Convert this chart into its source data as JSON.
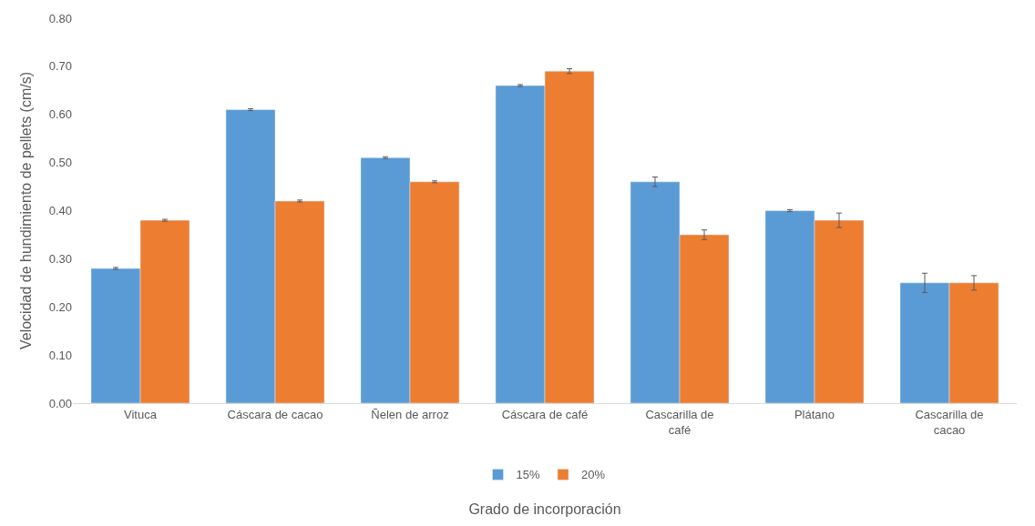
{
  "chart_data": {
    "type": "bar",
    "xlabel": "Grado de incorporación",
    "ylabel": "Velocidad de hundimiento de pellets (cm/s)",
    "categories": [
      "Vituca",
      "Cáscara de cacao",
      "Ñelen de arroz",
      "Cáscara de café",
      "Cascarilla de café",
      "Plátano",
      "Cascarilla de cacao"
    ],
    "series": [
      {
        "name": "15%",
        "color": "#5b9bd5",
        "values": [
          0.28,
          0.61,
          0.51,
          0.66,
          0.46,
          0.4,
          0.25
        ],
        "errors": [
          0.002,
          0.002,
          0.002,
          0.002,
          0.01,
          0.002,
          0.02
        ]
      },
      {
        "name": "20%",
        "color": "#ed7d31",
        "values": [
          0.38,
          0.42,
          0.46,
          0.69,
          0.35,
          0.38,
          0.25
        ],
        "errors": [
          0.002,
          0.002,
          0.002,
          0.005,
          0.01,
          0.015,
          0.015
        ]
      }
    ],
    "ylim": [
      0,
      0.8
    ],
    "yticks": [
      {
        "value": 0,
        "label": "0.00"
      },
      {
        "value": 0.1,
        "label": "0.10"
      },
      {
        "value": 0.2,
        "label": "0.20"
      },
      {
        "value": 0.3,
        "label": "0.30"
      },
      {
        "value": 0.4,
        "label": "0.40"
      },
      {
        "value": 0.5,
        "label": "0.50"
      },
      {
        "value": 0.6,
        "label": "0.60"
      },
      {
        "value": 0.7,
        "label": "0.70"
      },
      {
        "value": 0.8,
        "label": "0.80"
      }
    ],
    "legend": "bottom",
    "grid": false
  }
}
